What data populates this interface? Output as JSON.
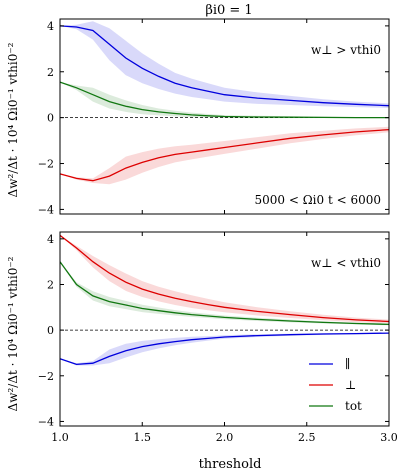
{
  "title": "βi0 = 1",
  "x_label": "threshold",
  "y_label": "Δw²/Δt · 10⁴ Ωi0⁻¹ vthi0⁻²",
  "colors": {
    "par": "#0000dd",
    "perp": "#dd0000",
    "tot": "#117711"
  },
  "chart_data": [
    {
      "type": "line",
      "annotation_top": "w⊥ > vthi0",
      "annotation_bottom": "5000 < Ωi0 t < 6000",
      "xlim": [
        1.0,
        3.0
      ],
      "ylim": [
        -4.2,
        4.3
      ],
      "x_ticks": [
        "1.0",
        "1.5",
        "2.0",
        "2.5",
        "3.0"
      ],
      "y_ticks": [
        "4",
        "2",
        "0",
        "−2",
        "−4"
      ],
      "series": [
        {
          "key": "par",
          "x": [
            1.0,
            1.1,
            1.2,
            1.3,
            1.4,
            1.5,
            1.6,
            1.7,
            1.8,
            1.9,
            2.0,
            2.2,
            2.4,
            2.6,
            2.8,
            3.0
          ],
          "y": [
            4.0,
            3.95,
            3.8,
            3.2,
            2.6,
            2.15,
            1.8,
            1.5,
            1.3,
            1.15,
            1.0,
            0.85,
            0.75,
            0.65,
            0.58,
            0.52
          ],
          "band": [
            0.0,
            0.1,
            0.4,
            0.7,
            0.75,
            0.65,
            0.55,
            0.45,
            0.4,
            0.35,
            0.3,
            0.25,
            0.2,
            0.15,
            0.12,
            0.1
          ]
        },
        {
          "key": "perp",
          "x": [
            1.0,
            1.1,
            1.2,
            1.3,
            1.4,
            1.5,
            1.6,
            1.7,
            1.8,
            1.9,
            2.0,
            2.2,
            2.4,
            2.6,
            2.8,
            3.0
          ],
          "y": [
            -2.45,
            -2.65,
            -2.75,
            -2.55,
            -2.2,
            -1.95,
            -1.75,
            -1.6,
            -1.5,
            -1.4,
            -1.3,
            -1.1,
            -0.9,
            -0.75,
            -0.62,
            -0.52
          ],
          "band": [
            0.0,
            0.05,
            0.1,
            0.35,
            0.5,
            0.45,
            0.4,
            0.35,
            0.32,
            0.3,
            0.28,
            0.25,
            0.22,
            0.18,
            0.15,
            0.12
          ]
        },
        {
          "key": "tot",
          "x": [
            1.0,
            1.1,
            1.2,
            1.3,
            1.4,
            1.5,
            1.6,
            1.7,
            1.8,
            1.9,
            2.0,
            2.2,
            2.4,
            2.6,
            2.8,
            3.0
          ],
          "y": [
            1.55,
            1.3,
            1.0,
            0.7,
            0.5,
            0.35,
            0.25,
            0.18,
            0.12,
            0.08,
            0.05,
            0.03,
            0.02,
            0.01,
            0.0,
            0.0
          ],
          "band": [
            0.0,
            0.1,
            0.3,
            0.3,
            0.25,
            0.2,
            0.15,
            0.12,
            0.1,
            0.08,
            0.06,
            0.05,
            0.04,
            0.03,
            0.02,
            0.02
          ]
        }
      ]
    },
    {
      "type": "line",
      "annotation_top": "w⊥ < vthi0",
      "xlim": [
        1.0,
        3.0
      ],
      "ylim": [
        -4.2,
        4.3
      ],
      "x_ticks": [
        "1.0",
        "1.5",
        "2.0",
        "2.5",
        "3.0"
      ],
      "y_ticks": [
        "4",
        "2",
        "0",
        "−2",
        "−4"
      ],
      "legend": {
        "placement": "bottom-right",
        "entries": [
          "∥",
          "⊥",
          "tot"
        ]
      },
      "series": [
        {
          "key": "par",
          "name": "∥",
          "x": [
            1.0,
            1.1,
            1.2,
            1.3,
            1.4,
            1.5,
            1.6,
            1.7,
            1.8,
            1.9,
            2.0,
            2.2,
            2.4,
            2.6,
            2.8,
            3.0
          ],
          "y": [
            -1.25,
            -1.5,
            -1.45,
            -1.15,
            -0.9,
            -0.72,
            -0.6,
            -0.5,
            -0.42,
            -0.36,
            -0.3,
            -0.24,
            -0.2,
            -0.17,
            -0.15,
            -0.13
          ],
          "band": [
            0.0,
            0.05,
            0.1,
            0.3,
            0.3,
            0.25,
            0.2,
            0.16,
            0.13,
            0.1,
            0.08,
            0.06,
            0.05,
            0.04,
            0.03,
            0.02
          ]
        },
        {
          "key": "perp",
          "name": "⊥",
          "x": [
            1.0,
            1.1,
            1.2,
            1.3,
            1.4,
            1.5,
            1.6,
            1.7,
            1.8,
            1.9,
            2.0,
            2.2,
            2.4,
            2.6,
            2.8,
            3.0
          ],
          "y": [
            4.15,
            3.6,
            3.0,
            2.5,
            2.1,
            1.8,
            1.58,
            1.4,
            1.25,
            1.12,
            1.0,
            0.82,
            0.68,
            0.55,
            0.45,
            0.38
          ],
          "band": [
            0.0,
            0.1,
            0.25,
            0.35,
            0.38,
            0.35,
            0.32,
            0.3,
            0.28,
            0.25,
            0.22,
            0.18,
            0.15,
            0.12,
            0.1,
            0.08
          ]
        },
        {
          "key": "tot",
          "name": "tot",
          "x": [
            1.0,
            1.1,
            1.2,
            1.3,
            1.4,
            1.5,
            1.6,
            1.7,
            1.8,
            1.9,
            2.0,
            2.2,
            2.4,
            2.6,
            2.8,
            3.0
          ],
          "y": [
            3.0,
            2.0,
            1.5,
            1.25,
            1.1,
            0.95,
            0.85,
            0.76,
            0.68,
            0.62,
            0.56,
            0.47,
            0.4,
            0.34,
            0.29,
            0.25
          ],
          "band": [
            0.0,
            0.1,
            0.2,
            0.2,
            0.18,
            0.16,
            0.14,
            0.12,
            0.1,
            0.09,
            0.08,
            0.07,
            0.06,
            0.05,
            0.04,
            0.04
          ]
        }
      ]
    }
  ]
}
